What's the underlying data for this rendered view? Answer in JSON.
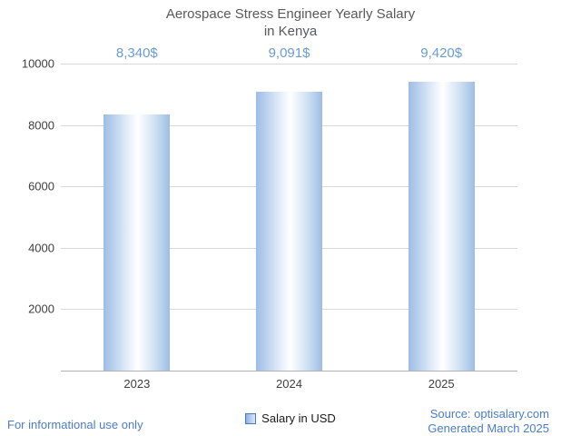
{
  "title": {
    "line1": "Aerospace Stress Engineer Yearly Salary",
    "line2": "in Kenya"
  },
  "chart_data": {
    "type": "bar",
    "title": "Aerospace Stress Engineer Yearly Salary in Kenya",
    "categories": [
      "2023",
      "2024",
      "2025"
    ],
    "values": [
      8340,
      9091,
      9420
    ],
    "value_labels": [
      "8,340$",
      "9,091$",
      "9,420$"
    ],
    "series": [
      {
        "name": "Salary in USD",
        "values": [
          8340,
          9091,
          9420
        ]
      }
    ],
    "xlabel": "",
    "ylabel": "",
    "ylim": [
      0,
      10000
    ],
    "yticks": [
      2000,
      4000,
      6000,
      8000,
      10000
    ],
    "grid": true,
    "legend": {
      "label": "Salary in USD",
      "position": "bottom"
    },
    "bar_edge_color": "#9dbde6",
    "bar_center_color": "#ffffff",
    "value_label_color": "#6b9bd2"
  },
  "footer": {
    "left": "For informational use only",
    "source": "Source: optisalary.com",
    "generated": "Generated March 2025"
  },
  "colors": {
    "accent_blue": "#4a7dcb",
    "title_gray": "#58595b",
    "gridline": "#d9d9d9"
  }
}
